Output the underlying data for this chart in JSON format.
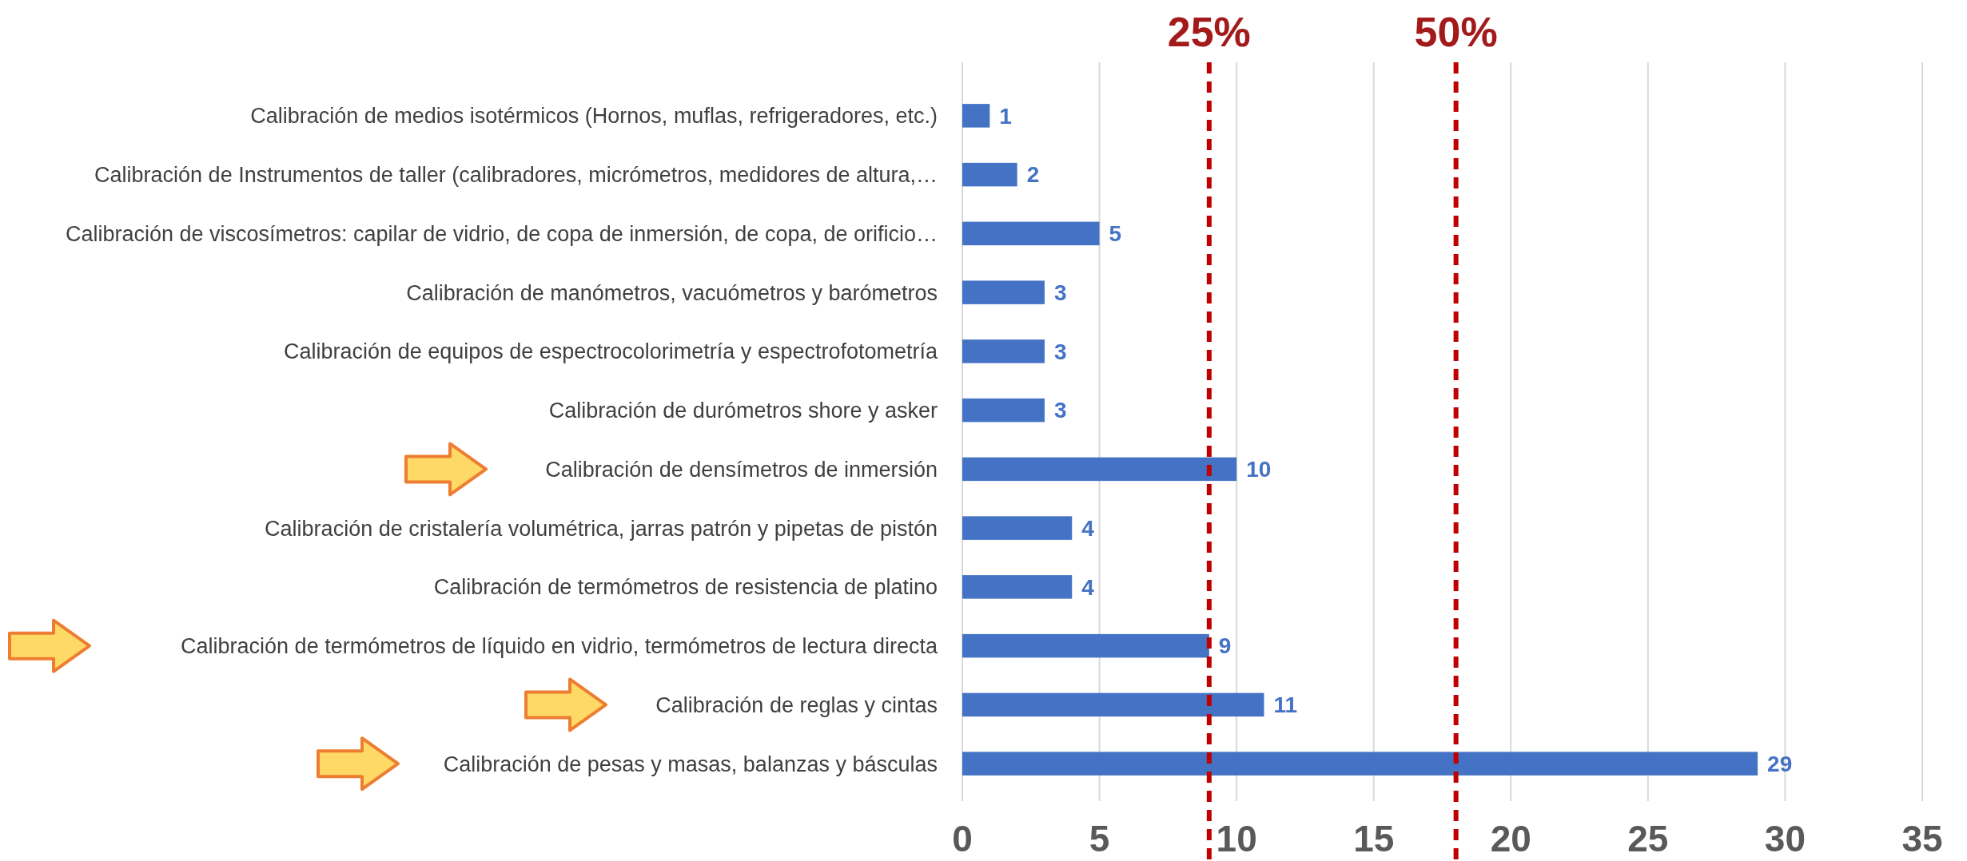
{
  "chart_data": {
    "type": "bar",
    "orientation": "horizontal",
    "categories": [
      "Calibración de medios isotérmicos (Hornos, muflas, refrigeradores, etc.)",
      "Calibración de Instrumentos de taller (calibradores, micrómetros, medidores de altura,…",
      "Calibración de viscosímetros: capilar de vidrio, de copa de inmersión, de copa, de orificio…",
      "Calibración de manómetros, vacuómetros y barómetros",
      "Calibración de equipos de espectrocolorimetría y espectrofotometría",
      "Calibración de durómetros shore y asker",
      "Calibración de densímetros de inmersión",
      "Calibración de cristalería volumétrica, jarras patrón y pipetas de pistón",
      "Calibración de termómetros de resistencia de platino",
      "Calibración de termómetros de líquido en vidrio, termómetros de lectura directa",
      "Calibración de reglas y cintas",
      "Calibración de pesas y masas, balanzas y básculas"
    ],
    "values": [
      1,
      2,
      5,
      3,
      3,
      3,
      10,
      4,
      4,
      9,
      11,
      29
    ],
    "color": "#4472c4",
    "xlim": [
      0,
      35
    ],
    "xticks": [
      0,
      5,
      10,
      15,
      20,
      25,
      30,
      35
    ],
    "grid": "x",
    "data_labels": true,
    "ref_lines": [
      {
        "axis": "x",
        "value": 9,
        "color": "#c00000",
        "line_style": "dashed"
      },
      {
        "axis": "x",
        "value": 18,
        "color": "#c00000",
        "line_style": "dashed"
      }
    ],
    "annotations": [
      "25%",
      "50%"
    ]
  }
}
